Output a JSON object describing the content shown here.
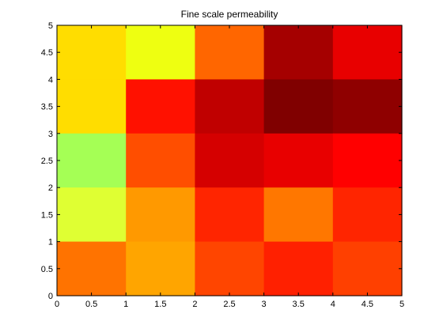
{
  "chart_data": {
    "type": "heatmap",
    "title": "Fine scale permeability",
    "xlabel": "",
    "ylabel": "",
    "colormap": "hot",
    "xlim": [
      0,
      5
    ],
    "ylim": [
      0,
      5
    ],
    "x_edges": [
      0,
      1,
      2,
      3,
      4,
      5
    ],
    "y_edges": [
      0,
      1,
      2,
      3,
      4,
      5
    ],
    "x_ticks": [
      "0",
      "0.5",
      "1",
      "1.5",
      "2",
      "2.5",
      "3",
      "3.5",
      "4",
      "4.5",
      "5"
    ],
    "y_ticks": [
      "0",
      "0.5",
      "1",
      "1.5",
      "2",
      "2.5",
      "3",
      "3.5",
      "4",
      "4.5",
      "5"
    ],
    "rows_top_to_bottom": [
      [
        "#FFDD00",
        "#EEFF11",
        "#FF6600",
        "#A50000",
        "#E80000"
      ],
      [
        "#FFDD00",
        "#FF1100",
        "#C00000",
        "#800000",
        "#8F0000"
      ],
      [
        "#A5FF55",
        "#FF4E00",
        "#D50000",
        "#E80000",
        "#FF0000"
      ],
      [
        "#DFFF33",
        "#FF9900",
        "#FF2500",
        "#FF7700",
        "#FF2500"
      ],
      [
        "#FF7300",
        "#FFA500",
        "#FF4500",
        "#FF2000",
        "#FF4000"
      ]
    ],
    "grid": false,
    "legend": "none"
  }
}
